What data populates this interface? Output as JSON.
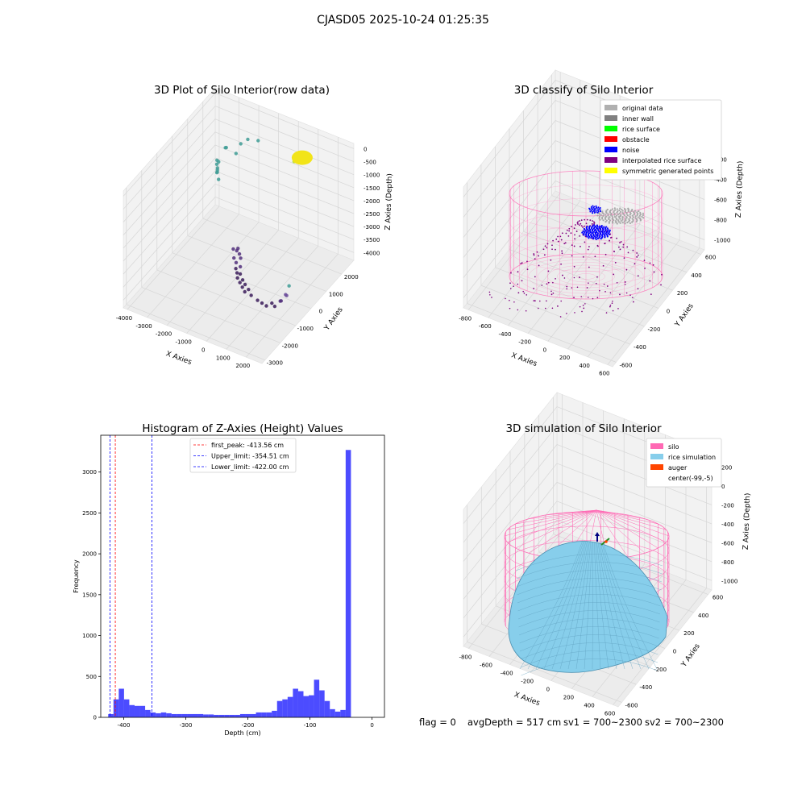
{
  "figure": {
    "suptitle": "CJASD05 2025-10-24 01:25:35"
  },
  "status": {
    "flag": "flag = 0",
    "avg_depth": "avgDepth = 517 cm",
    "sv1": "sv1 = 700~2300",
    "sv2": "sv2 = 700~2300"
  },
  "chart_data": [
    {
      "type": "scatter",
      "title": "3D Plot of Silo Interior(row data)",
      "xlabel": "X Axies",
      "ylabel": "Y Axies",
      "zlabel": "Z Axies (Depth)",
      "x_ticks": [
        -4000,
        -3000,
        -2000,
        -1000,
        0,
        1000,
        2000
      ],
      "y_ticks": [
        -3000,
        -2000,
        -1000,
        0,
        1000,
        2000
      ],
      "z_ticks": [
        0,
        -500,
        -1000,
        -1500,
        -2000,
        -2500,
        -3000,
        -3500,
        -4000
      ],
      "xlim": [
        -4200,
        2800
      ],
      "ylim": [
        -3200,
        2800
      ],
      "zlim": [
        -4300,
        200
      ],
      "points": [
        {
          "x": -3800,
          "y": 2400,
          "z": -2200
        },
        {
          "x": -3700,
          "y": 2300,
          "z": -2400
        },
        {
          "x": -3650,
          "y": 2200,
          "z": -2500
        },
        {
          "x": -3600,
          "y": 2250,
          "z": -2100
        },
        {
          "x": -3550,
          "y": 2100,
          "z": -2300
        },
        {
          "x": -3500,
          "y": 2000,
          "z": -2000
        },
        {
          "x": -3450,
          "y": 2050,
          "z": -2600
        },
        {
          "x": -3400,
          "y": 1900,
          "z": -2200
        },
        {
          "x": -3300,
          "y": 2300,
          "z": -1500
        },
        {
          "x": -3100,
          "y": 2100,
          "z": -1300
        },
        {
          "x": -2600,
          "y": 2400,
          "z": -1200
        },
        {
          "x": -2800,
          "y": 2350,
          "z": -1600
        },
        {
          "x": -2400,
          "y": 2600,
          "z": -1100
        },
        {
          "x": -1800,
          "y": 2500,
          "z": -900
        },
        {
          "x": -1200,
          "y": 100,
          "z": -3300
        },
        {
          "x": -1100,
          "y": 200,
          "z": -3400
        },
        {
          "x": -1050,
          "y": -50,
          "z": -3500
        },
        {
          "x": -1000,
          "y": 150,
          "z": -3250
        },
        {
          "x": -900,
          "y": -100,
          "z": -3600
        },
        {
          "x": -850,
          "y": 50,
          "z": -3350
        },
        {
          "x": -800,
          "y": -250,
          "z": -3700
        },
        {
          "x": -750,
          "y": 0,
          "z": -3450
        },
        {
          "x": -700,
          "y": -300,
          "z": -3800
        },
        {
          "x": -650,
          "y": -150,
          "z": -3650
        },
        {
          "x": -600,
          "y": -400,
          "z": -3900
        },
        {
          "x": -500,
          "y": -350,
          "z": -3750
        },
        {
          "x": -400,
          "y": -500,
          "z": -3950
        },
        {
          "x": -300,
          "y": -450,
          "z": -3850
        },
        {
          "x": -200,
          "y": -600,
          "z": -4000
        },
        {
          "x": -100,
          "y": -550,
          "z": -3900
        },
        {
          "x": 0,
          "y": -700,
          "z": -4050
        },
        {
          "x": 150,
          "y": -650,
          "z": -3950
        },
        {
          "x": 400,
          "y": -800,
          "z": -4000
        },
        {
          "x": 800,
          "y": -900,
          "z": -4000
        },
        {
          "x": 1100,
          "y": -1000,
          "z": -3950
        },
        {
          "x": 1400,
          "y": -1100,
          "z": -3900
        },
        {
          "x": 1600,
          "y": -1000,
          "z": -3800
        },
        {
          "x": 1900,
          "y": -1200,
          "z": -3700
        },
        {
          "x": 2100,
          "y": -1100,
          "z": -3500
        },
        {
          "x": 2300,
          "y": -1300,
          "z": -3300
        },
        {
          "x": 2500,
          "y": -1200,
          "z": -3100
        },
        {
          "x": 2600,
          "y": -1400,
          "z": -2900
        },
        {
          "x": 2700,
          "y": -1300,
          "z": -2600
        },
        {
          "x": 700,
          "y": 1900,
          "z": -300
        },
        {
          "x": 800,
          "y": 1950,
          "z": -350
        },
        {
          "x": 900,
          "y": 2000,
          "z": -400
        },
        {
          "x": 750,
          "y": 2050,
          "z": -450
        },
        {
          "x": 850,
          "y": 1850,
          "z": -250
        },
        {
          "x": 950,
          "y": 1900,
          "z": -500
        },
        {
          "x": 650,
          "y": 2000,
          "z": -550
        },
        {
          "x": 1000,
          "y": 2050,
          "z": -300
        },
        {
          "x": 400,
          "y": 2000,
          "z": -700
        }
      ]
    },
    {
      "type": "scatter",
      "title": "3D classify of Silo Interior",
      "xlabel": "X Axies",
      "ylabel": "Y Axies",
      "zlabel": "Z Axies (Depth)",
      "x_ticks": [
        -800,
        -600,
        -400,
        -200,
        0,
        200,
        400,
        600
      ],
      "y_ticks": [
        -600,
        -400,
        -200,
        0,
        200,
        400,
        600
      ],
      "z_ticks": [
        0,
        -200,
        -400,
        -600,
        -800,
        -1000
      ],
      "xlim": [
        -850,
        650
      ],
      "ylim": [
        -650,
        650
      ],
      "zlim": [
        -1100,
        100
      ],
      "legend_position": "top-right",
      "legend": [
        {
          "label": "original data",
          "color": "#b0b0b0"
        },
        {
          "label": "inner wall",
          "color": "#808080"
        },
        {
          "label": "rice surface",
          "color": "#00ff00"
        },
        {
          "label": "obstacle",
          "color": "#ff0000"
        },
        {
          "label": "noise",
          "color": "#0000ff"
        },
        {
          "label": "interpolated rice surface",
          "color": "#800080"
        },
        {
          "label": "symmetric generated points",
          "color": "#ffff00"
        }
      ],
      "silo_color": "#ff69b4"
    },
    {
      "type": "bar",
      "title": "Histogram of Z-Axies (Height) Values",
      "xlabel": "Depth (cm)",
      "ylabel": "Frequency",
      "xlim": [
        -437,
        20
      ],
      "ylim": [
        0,
        3450
      ],
      "x_ticks": [
        -400,
        -300,
        -200,
        -100,
        0
      ],
      "y_ticks": [
        0,
        500,
        1000,
        1500,
        2000,
        2500,
        3000
      ],
      "bin_start": -425,
      "bin_width": 8.5,
      "values": [
        40,
        220,
        350,
        220,
        150,
        140,
        140,
        90,
        60,
        50,
        60,
        50,
        40,
        40,
        40,
        40,
        40,
        40,
        35,
        35,
        30,
        30,
        30,
        30,
        30,
        40,
        40,
        40,
        60,
        60,
        60,
        80,
        200,
        220,
        250,
        350,
        320,
        260,
        270,
        460,
        330,
        200,
        100,
        70,
        90,
        3270
      ],
      "bar_color": "#0000ff",
      "vlines": [
        {
          "label": "first_peak: -413.56 cm",
          "x": -413.56,
          "color": "#ff0000"
        },
        {
          "label": "Upper_limit: -354.51 cm",
          "x": -354.51,
          "color": "#0000ff"
        },
        {
          "label": "Lower_limit: -422.00 cm",
          "x": -422.0,
          "color": "#0000ff"
        }
      ],
      "legend_position": "top-center"
    },
    {
      "type": "area",
      "title": "3D simulation of Silo Interior",
      "xlabel": "X Axies",
      "ylabel": "Y Axies",
      "zlabel": "Z Axies (Depth)",
      "x_ticks": [
        -800,
        -600,
        -400,
        -200,
        0,
        200,
        400,
        600
      ],
      "y_ticks": [
        -600,
        -400,
        -200,
        0,
        200,
        400,
        600
      ],
      "z_ticks": [
        200,
        0,
        -200,
        -400,
        -600,
        -800,
        -1000
      ],
      "xlim": [
        -850,
        650
      ],
      "ylim": [
        -650,
        650
      ],
      "zlim": [
        -1100,
        350
      ],
      "legend_position": "top-right",
      "legend": [
        {
          "label": "silo",
          "color": "#ff69b4"
        },
        {
          "label": "rice simulation",
          "color": "#87ceeb"
        },
        {
          "label": "auger",
          "color": "#ff4500"
        },
        {
          "label": "center(-99,-5)",
          "color": ""
        }
      ]
    }
  ]
}
